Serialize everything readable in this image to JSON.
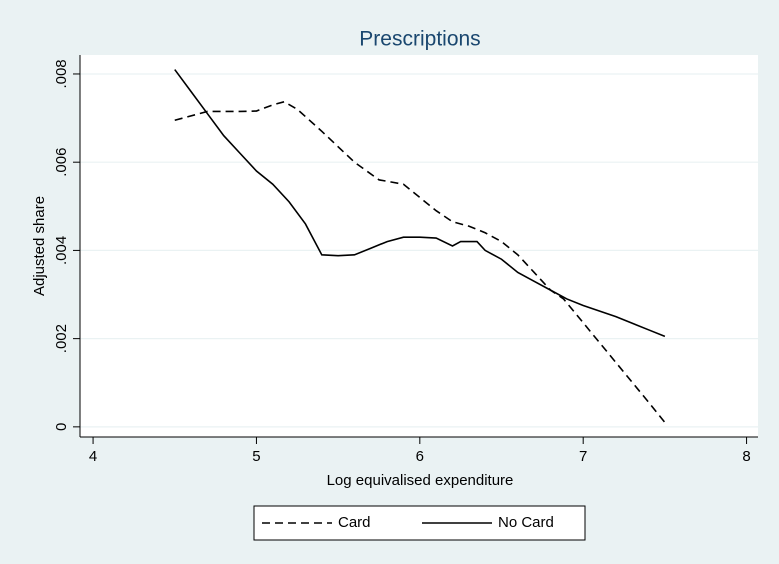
{
  "chart_data": {
    "type": "line",
    "title": "Prescriptions",
    "x_label": "Log equivalised expenditure",
    "y_label": "Adjusted share",
    "xlim": [
      3.92,
      8.07
    ],
    "xticks": [
      4,
      5,
      6,
      7,
      8
    ],
    "ylim": [
      -0.00023,
      0.00843
    ],
    "yticks": [
      0,
      {
        "value": 0.002,
        "label": ".002"
      },
      {
        "value": 0.004,
        "label": ".004"
      },
      {
        "value": 0.006,
        "label": ".006"
      },
      {
        "value": 0.008,
        "label": ".008"
      }
    ],
    "grid": true,
    "legend": "bottom",
    "series": [
      {
        "name": "Card",
        "color": "#000000",
        "dash": "dashed",
        "x": [
          4.5,
          4.7,
          4.9,
          5.0,
          5.1,
          5.17,
          5.25,
          5.4,
          5.6,
          5.75,
          5.9,
          6.0,
          6.1,
          6.2,
          6.3,
          6.4,
          6.5,
          6.6,
          6.7,
          6.8,
          6.88,
          7.0,
          7.2,
          7.4,
          7.5
        ],
        "values": [
          0.00695,
          0.00715,
          0.00715,
          0.00716,
          0.0073,
          0.00737,
          0.0072,
          0.0067,
          0.006,
          0.0056,
          0.0055,
          0.0052,
          0.0049,
          0.00465,
          0.00455,
          0.0044,
          0.0042,
          0.0039,
          0.0035,
          0.0031,
          0.0029,
          0.00236,
          0.00146,
          0.00056,
          0.0001
        ]
      },
      {
        "name": "No Card",
        "color": "#000000",
        "dash": "solid",
        "x": [
          4.5,
          4.6,
          4.7,
          4.8,
          4.9,
          5.0,
          5.1,
          5.2,
          5.3,
          5.4,
          5.5,
          5.6,
          5.7,
          5.8,
          5.9,
          6.0,
          6.1,
          6.2,
          6.25,
          6.35,
          6.4,
          6.5,
          6.6,
          6.7,
          6.8,
          6.9,
          7.0,
          7.2,
          7.4,
          7.5
        ],
        "values": [
          0.0081,
          0.0076,
          0.0071,
          0.0066,
          0.0062,
          0.0058,
          0.0055,
          0.0051,
          0.0046,
          0.0039,
          0.00388,
          0.0039,
          0.00405,
          0.0042,
          0.0043,
          0.0043,
          0.00428,
          0.0041,
          0.0042,
          0.0042,
          0.004,
          0.0038,
          0.0035,
          0.0033,
          0.0031,
          0.0029,
          0.00275,
          0.0025,
          0.0022,
          0.00205
        ]
      }
    ]
  }
}
